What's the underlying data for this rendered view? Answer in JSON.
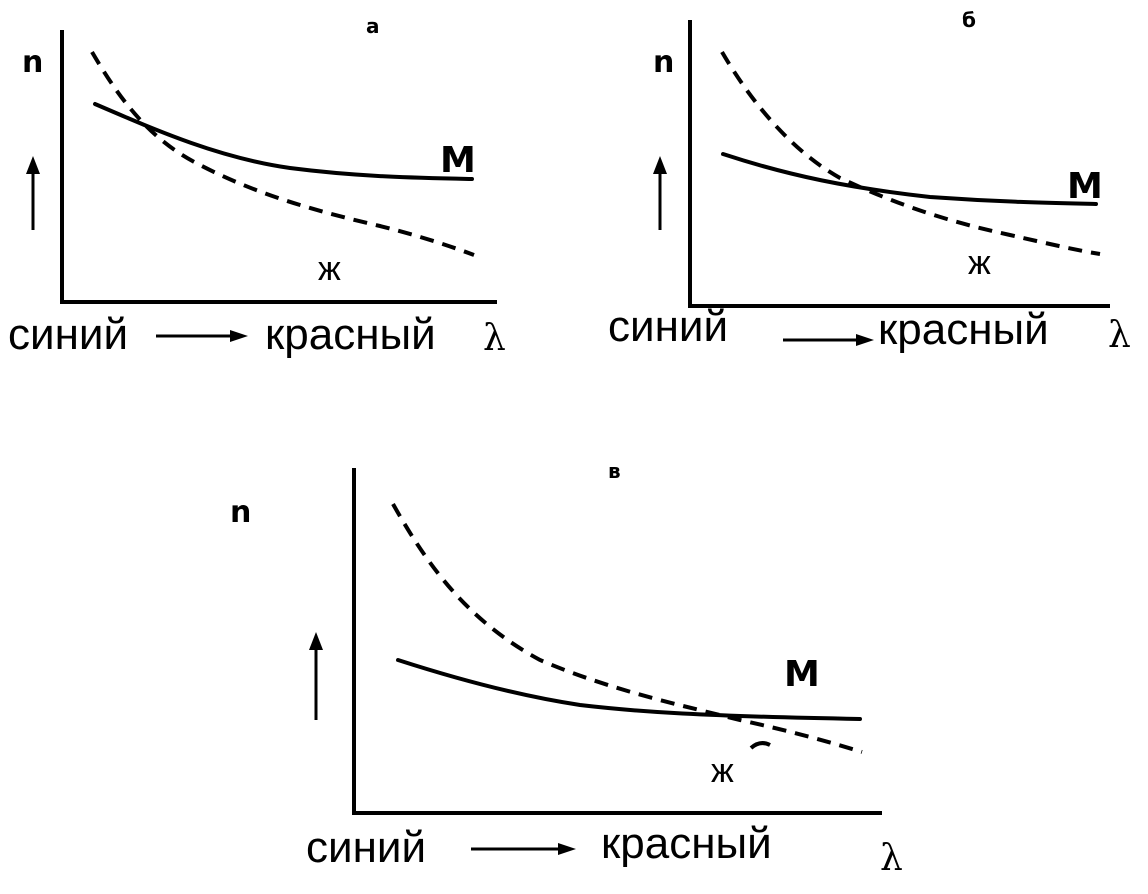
{
  "panels": [
    {
      "id": "a",
      "letter": "а",
      "y_symbol": "n",
      "solid_label": "М",
      "dashed_label": "ж",
      "x_left_word": "синий",
      "x_right_word": "красный",
      "x_symbol": "λ"
    },
    {
      "id": "b",
      "letter": "б",
      "y_symbol": "n",
      "solid_label": "М",
      "dashed_label": "ж",
      "x_left_word": "синий",
      "x_right_word": "красный",
      "x_symbol": "λ"
    },
    {
      "id": "v",
      "letter": "в",
      "y_symbol": "n",
      "solid_label": "М",
      "dashed_label": "ж",
      "x_left_word": "синий",
      "x_right_word": "красный",
      "x_symbol": "λ"
    }
  ]
}
